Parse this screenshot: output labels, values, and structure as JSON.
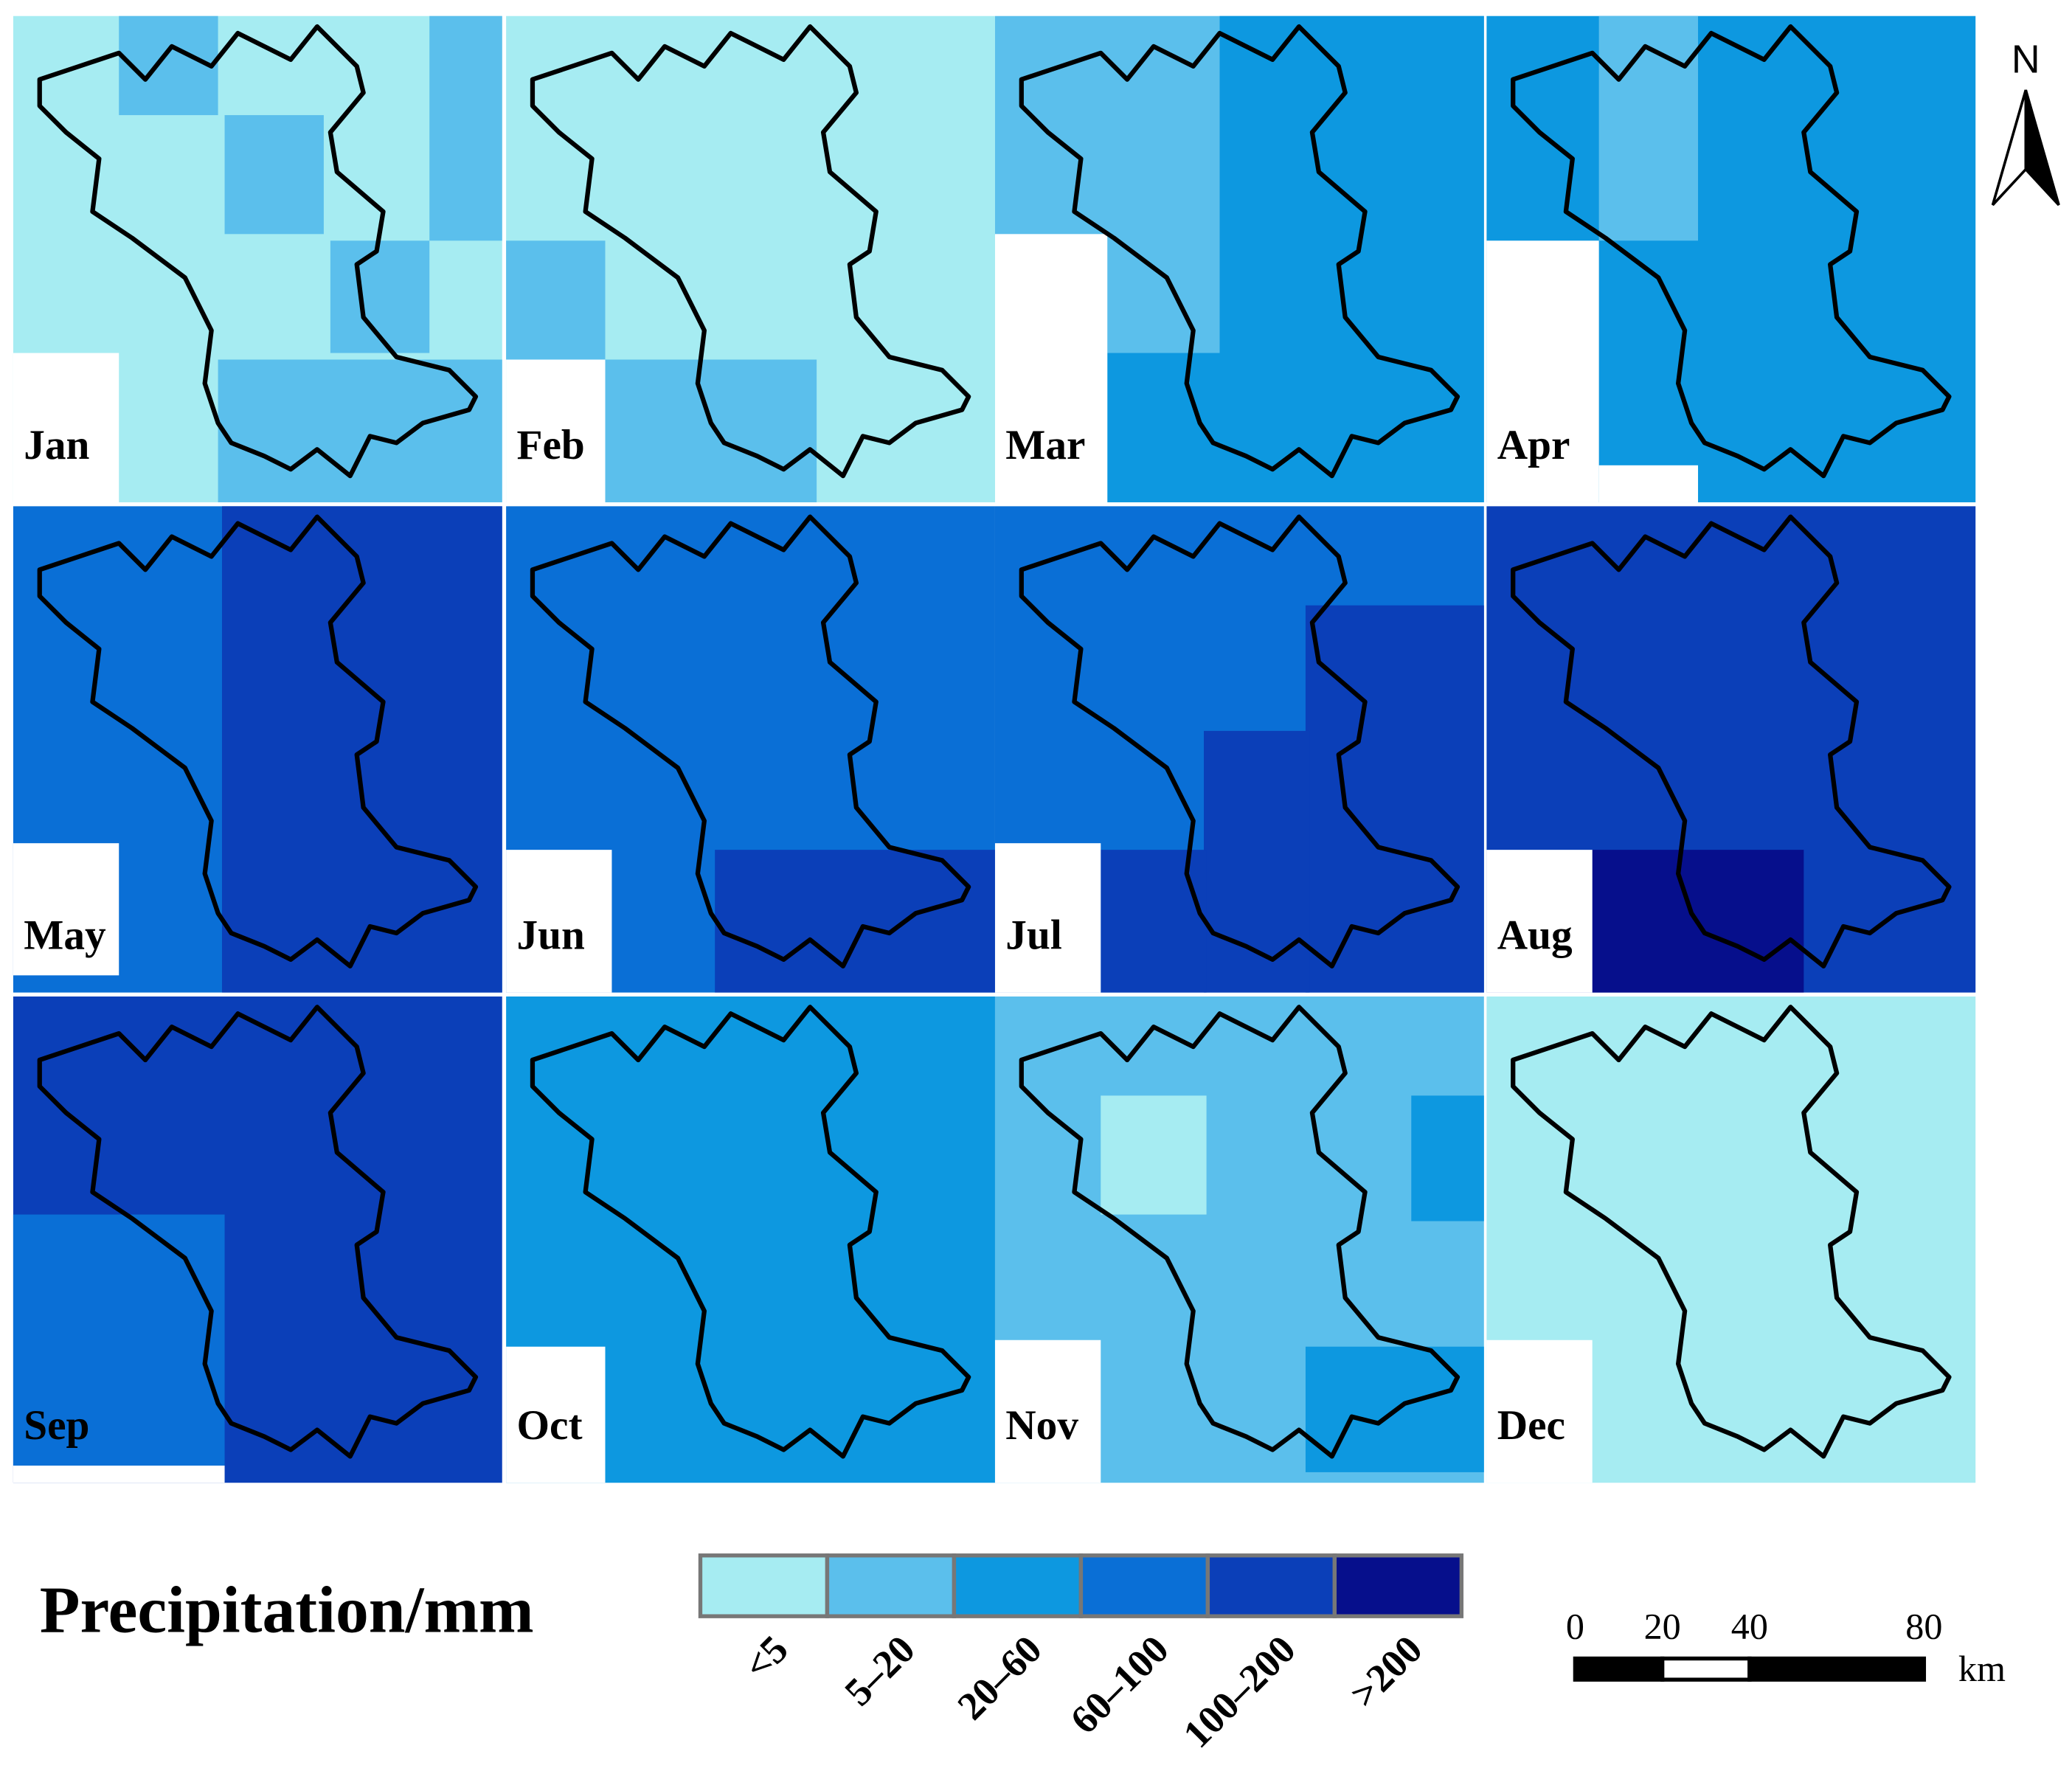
{
  "panels": [
    {
      "label": "Jan"
    },
    {
      "label": "Feb"
    },
    {
      "label": "Mar"
    },
    {
      "label": "Apr"
    },
    {
      "label": "May"
    },
    {
      "label": "Jun"
    },
    {
      "label": "Jul"
    },
    {
      "label": "Aug"
    },
    {
      "label": "Sep"
    },
    {
      "label": "Oct"
    },
    {
      "label": "Nov"
    },
    {
      "label": "Dec"
    }
  ],
  "north": "N",
  "legend": {
    "title": "Precipitation/mm",
    "classes": [
      {
        "label": "<5",
        "color": "#a6ecf2"
      },
      {
        "label": "5–20",
        "color": "#5bbfec"
      },
      {
        "label": "20–60",
        "color": "#0d98e0"
      },
      {
        "label": "60–100",
        "color": "#0a6fd6"
      },
      {
        "label": "100–200",
        "color": "#0b3fb8"
      },
      {
        "label": ">200",
        "color": "#060f8c"
      }
    ]
  },
  "scale_bar": {
    "ticks": [
      0,
      20,
      40,
      80
    ],
    "unit": "km"
  }
}
